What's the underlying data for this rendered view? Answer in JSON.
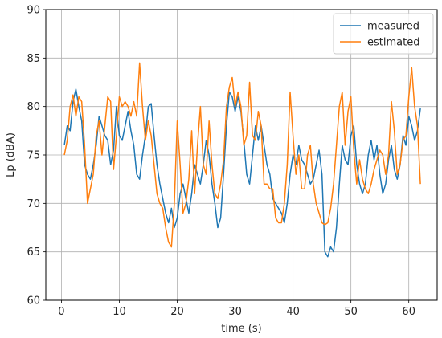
{
  "chart_data": {
    "type": "line",
    "title": "",
    "xlabel": "time (s)",
    "ylabel": "Lp (dBA)",
    "xlim": [
      -2.7,
      64.9
    ],
    "ylim": [
      60,
      90
    ],
    "x_ticks": [
      0,
      10,
      20,
      30,
      40,
      50,
      60
    ],
    "y_ticks": [
      60,
      65,
      70,
      75,
      80,
      85,
      90
    ],
    "grid": true,
    "legend_position": "top-right",
    "series": [
      {
        "name": "measured",
        "color": "#1f77b4",
        "points": [
          [
            0.5,
            76.0
          ],
          [
            1.0,
            78.0
          ],
          [
            1.5,
            77.5
          ],
          [
            2.0,
            80.5
          ],
          [
            2.5,
            81.8
          ],
          [
            3.0,
            80.0
          ],
          [
            3.5,
            78.5
          ],
          [
            4.0,
            74.0
          ],
          [
            4.5,
            73.0
          ],
          [
            5.0,
            72.5
          ],
          [
            5.5,
            74.0
          ],
          [
            6.0,
            76.0
          ],
          [
            6.5,
            79.0
          ],
          [
            7.0,
            78.0
          ],
          [
            7.5,
            77.0
          ],
          [
            8.0,
            76.5
          ],
          [
            8.5,
            74.0
          ],
          [
            9.0,
            75.5
          ],
          [
            9.5,
            80.0
          ],
          [
            10.0,
            77.0
          ],
          [
            10.5,
            76.5
          ],
          [
            11.0,
            78.0
          ],
          [
            11.5,
            79.5
          ],
          [
            12.0,
            77.5
          ],
          [
            12.5,
            76.0
          ],
          [
            13.0,
            73.0
          ],
          [
            13.5,
            72.5
          ],
          [
            14.0,
            75.0
          ],
          [
            14.5,
            77.0
          ],
          [
            15.0,
            80.0
          ],
          [
            15.5,
            80.3
          ],
          [
            16.0,
            77.0
          ],
          [
            16.5,
            74.0
          ],
          [
            17.0,
            72.0
          ],
          [
            17.5,
            70.5
          ],
          [
            18.0,
            69.0
          ],
          [
            18.5,
            68.0
          ],
          [
            19.0,
            69.5
          ],
          [
            19.5,
            67.5
          ],
          [
            20.0,
            68.5
          ],
          [
            20.5,
            71.0
          ],
          [
            21.0,
            72.0
          ],
          [
            21.5,
            70.5
          ],
          [
            22.0,
            69.0
          ],
          [
            22.5,
            71.0
          ],
          [
            23.0,
            74.0
          ],
          [
            23.5,
            73.0
          ],
          [
            24.0,
            72.0
          ],
          [
            24.5,
            74.0
          ],
          [
            25.0,
            76.5
          ],
          [
            25.5,
            75.0
          ],
          [
            26.0,
            72.0
          ],
          [
            26.5,
            70.0
          ],
          [
            27.0,
            67.5
          ],
          [
            27.5,
            68.5
          ],
          [
            28.0,
            73.0
          ],
          [
            28.5,
            78.0
          ],
          [
            29.0,
            81.5
          ],
          [
            29.5,
            81.0
          ],
          [
            30.0,
            79.5
          ],
          [
            30.5,
            81.0
          ],
          [
            31.0,
            79.5
          ],
          [
            31.5,
            76.5
          ],
          [
            32.0,
            73.0
          ],
          [
            32.5,
            72.0
          ],
          [
            33.0,
            75.0
          ],
          [
            33.5,
            78.0
          ],
          [
            34.0,
            76.5
          ],
          [
            34.5,
            78.0
          ],
          [
            35.0,
            76.0
          ],
          [
            35.5,
            74.0
          ],
          [
            36.0,
            73.0
          ],
          [
            36.5,
            70.5
          ],
          [
            37.0,
            70.0
          ],
          [
            37.5,
            69.5
          ],
          [
            38.0,
            69.0
          ],
          [
            38.5,
            68.0
          ],
          [
            39.0,
            70.0
          ],
          [
            39.5,
            73.0
          ],
          [
            40.0,
            75.0
          ],
          [
            40.5,
            74.0
          ],
          [
            41.0,
            76.0
          ],
          [
            41.5,
            74.5
          ],
          [
            42.0,
            74.0
          ],
          [
            42.5,
            73.0
          ],
          [
            43.0,
            72.0
          ],
          [
            43.5,
            72.5
          ],
          [
            44.0,
            74.0
          ],
          [
            44.5,
            75.5
          ],
          [
            45.0,
            73.0
          ],
          [
            45.5,
            65.0
          ],
          [
            46.0,
            64.5
          ],
          [
            46.5,
            65.5
          ],
          [
            47.0,
            65.0
          ],
          [
            47.5,
            67.5
          ],
          [
            48.0,
            72.0
          ],
          [
            48.5,
            76.0
          ],
          [
            49.0,
            74.5
          ],
          [
            49.5,
            74.0
          ],
          [
            50.0,
            77.0
          ],
          [
            50.5,
            78.0
          ],
          [
            51.0,
            74.0
          ],
          [
            51.5,
            72.0
          ],
          [
            52.0,
            71.0
          ],
          [
            52.5,
            72.0
          ],
          [
            53.0,
            75.0
          ],
          [
            53.5,
            76.5
          ],
          [
            54.0,
            74.5
          ],
          [
            54.5,
            76.0
          ],
          [
            55.0,
            73.0
          ],
          [
            55.5,
            71.0
          ],
          [
            56.0,
            72.0
          ],
          [
            56.5,
            74.5
          ],
          [
            57.0,
            76.0
          ],
          [
            57.5,
            73.5
          ],
          [
            58.0,
            72.5
          ],
          [
            58.5,
            74.0
          ],
          [
            59.0,
            77.0
          ],
          [
            59.5,
            76.0
          ],
          [
            60.0,
            79.0
          ],
          [
            60.5,
            78.0
          ],
          [
            61.0,
            76.5
          ],
          [
            61.5,
            77.5
          ],
          [
            62.0,
            79.8
          ]
        ]
      },
      {
        "name": "estimated",
        "color": "#ff7f0e",
        "points": [
          [
            0.5,
            75.0
          ],
          [
            1.0,
            76.5
          ],
          [
            1.5,
            80.0
          ],
          [
            2.0,
            81.2
          ],
          [
            2.5,
            79.0
          ],
          [
            3.0,
            81.0
          ],
          [
            3.5,
            80.5
          ],
          [
            4.0,
            76.0
          ],
          [
            4.5,
            70.0
          ],
          [
            5.0,
            71.5
          ],
          [
            5.5,
            73.0
          ],
          [
            6.0,
            77.0
          ],
          [
            6.5,
            78.5
          ],
          [
            7.0,
            75.0
          ],
          [
            7.5,
            78.0
          ],
          [
            8.0,
            81.0
          ],
          [
            8.5,
            80.5
          ],
          [
            9.0,
            73.5
          ],
          [
            9.5,
            77.0
          ],
          [
            10.0,
            81.0
          ],
          [
            10.5,
            80.0
          ],
          [
            11.0,
            80.5
          ],
          [
            11.5,
            80.0
          ],
          [
            12.0,
            79.0
          ],
          [
            12.5,
            80.5
          ],
          [
            13.0,
            79.0
          ],
          [
            13.5,
            84.5
          ],
          [
            14.0,
            80.0
          ],
          [
            14.5,
            76.5
          ],
          [
            15.0,
            78.5
          ],
          [
            15.5,
            77.0
          ],
          [
            16.0,
            74.0
          ],
          [
            16.5,
            71.0
          ],
          [
            17.0,
            70.0
          ],
          [
            17.5,
            69.5
          ],
          [
            18.0,
            67.5
          ],
          [
            18.5,
            66.0
          ],
          [
            19.0,
            65.5
          ],
          [
            19.5,
            70.0
          ],
          [
            20.0,
            78.5
          ],
          [
            20.5,
            74.0
          ],
          [
            21.0,
            69.0
          ],
          [
            21.5,
            70.0
          ],
          [
            22.0,
            72.5
          ],
          [
            22.5,
            77.5
          ],
          [
            23.0,
            71.0
          ],
          [
            23.5,
            76.0
          ],
          [
            24.0,
            80.0
          ],
          [
            24.5,
            74.0
          ],
          [
            25.0,
            73.0
          ],
          [
            25.5,
            78.5
          ],
          [
            26.0,
            74.0
          ],
          [
            26.5,
            71.0
          ],
          [
            27.0,
            70.5
          ],
          [
            27.5,
            72.0
          ],
          [
            28.0,
            74.5
          ],
          [
            28.5,
            80.0
          ],
          [
            29.0,
            82.0
          ],
          [
            29.5,
            83.0
          ],
          [
            30.0,
            80.0
          ],
          [
            30.5,
            81.5
          ],
          [
            31.0,
            80.0
          ],
          [
            31.5,
            76.0
          ],
          [
            32.0,
            77.0
          ],
          [
            32.5,
            82.5
          ],
          [
            33.0,
            77.0
          ],
          [
            33.5,
            76.5
          ],
          [
            34.0,
            79.5
          ],
          [
            34.5,
            78.0
          ],
          [
            35.0,
            72.0
          ],
          [
            35.5,
            72.0
          ],
          [
            36.0,
            71.5
          ],
          [
            36.5,
            71.5
          ],
          [
            37.0,
            68.5
          ],
          [
            37.5,
            68.0
          ],
          [
            38.0,
            68.0
          ],
          [
            38.5,
            70.0
          ],
          [
            39.0,
            74.0
          ],
          [
            39.5,
            81.5
          ],
          [
            40.0,
            77.0
          ],
          [
            40.5,
            73.0
          ],
          [
            41.0,
            75.0
          ],
          [
            41.5,
            71.5
          ],
          [
            42.0,
            71.5
          ],
          [
            42.5,
            75.0
          ],
          [
            43.0,
            76.0
          ],
          [
            43.5,
            72.0
          ],
          [
            44.0,
            70.0
          ],
          [
            44.5,
            69.0
          ],
          [
            45.0,
            68.0
          ],
          [
            45.5,
            67.8
          ],
          [
            46.0,
            68.0
          ],
          [
            46.5,
            69.5
          ],
          [
            47.0,
            72.0
          ],
          [
            47.5,
            76.0
          ],
          [
            48.0,
            80.0
          ],
          [
            48.5,
            81.5
          ],
          [
            49.0,
            76.0
          ],
          [
            49.5,
            79.5
          ],
          [
            50.0,
            81.0
          ],
          [
            50.5,
            75.5
          ],
          [
            51.0,
            72.0
          ],
          [
            51.5,
            74.5
          ],
          [
            52.0,
            72.5
          ],
          [
            52.5,
            71.5
          ],
          [
            53.0,
            71.0
          ],
          [
            53.5,
            72.0
          ],
          [
            54.0,
            73.5
          ],
          [
            54.5,
            74.5
          ],
          [
            55.0,
            75.5
          ],
          [
            55.5,
            75.0
          ],
          [
            56.0,
            73.0
          ],
          [
            56.5,
            75.0
          ],
          [
            57.0,
            80.5
          ],
          [
            57.5,
            77.5
          ],
          [
            58.0,
            73.0
          ],
          [
            58.5,
            74.0
          ],
          [
            59.0,
            76.5
          ],
          [
            59.5,
            77.0
          ],
          [
            60.0,
            81.0
          ],
          [
            60.5,
            84.0
          ],
          [
            61.0,
            80.0
          ],
          [
            61.5,
            78.0
          ],
          [
            62.0,
            72.0
          ]
        ]
      }
    ]
  }
}
